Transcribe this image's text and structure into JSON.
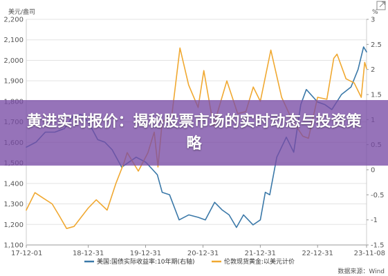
{
  "headline": "黄进实时报价：揭秘股票市场的实时动态与投资策略",
  "source_label": "数据来源：Wind",
  "chart_data": {
    "type": "line",
    "units": {
      "left": "美元/盎司",
      "right": "%"
    },
    "x_ticks": [
      "17-12-01",
      "18-12-31",
      "19-12-31",
      "20-12-31",
      "21-12-31",
      "22-12-31",
      "23-11-08"
    ],
    "y_left": {
      "min": 1100,
      "max": 2200,
      "ticks": [
        "1,100",
        "1,200",
        "1,300",
        "1,400",
        "1,500",
        "1,600",
        "1,700",
        "1,800",
        "1,900",
        "2,000",
        "2,100",
        "2,200"
      ]
    },
    "y_right": {
      "min": -1.5,
      "max": 3,
      "ticks": [
        "-1.5",
        "-1",
        "-0.5",
        "0",
        "0.5",
        "1",
        "1.5",
        "2",
        "2.5",
        "3"
      ]
    },
    "legend": [
      {
        "name": "美国:国债实际收益率:10年期(右轴)",
        "color": "#3a78a8"
      },
      {
        "name": "伦敦现货黄金:以美元计价",
        "color": "#f0a830"
      }
    ],
    "series": [
      {
        "name": "美国:国债实际收益率:10年期(右轴)",
        "axis": "right",
        "color": "#3a78a8",
        "x": [
          "2017-12-01",
          "2018-02-01",
          "2018-04-01",
          "2018-06-01",
          "2018-08-01",
          "2018-10-01",
          "2018-11-15",
          "2019-01-01",
          "2019-03-01",
          "2019-04-15",
          "2019-06-01",
          "2019-08-01",
          "2019-09-15",
          "2019-11-01",
          "2020-01-01",
          "2020-02-15",
          "2020-03-15",
          "2020-04-15",
          "2020-06-01",
          "2020-08-01",
          "2020-10-01",
          "2020-12-01",
          "2021-01-15",
          "2021-03-15",
          "2021-05-01",
          "2021-06-15",
          "2021-08-01",
          "2021-09-15",
          "2021-11-15",
          "2021-12-31",
          "2022-02-01",
          "2022-03-01",
          "2022-04-15",
          "2022-06-15",
          "2022-08-01",
          "2022-09-15",
          "2022-10-20",
          "2022-12-31",
          "2023-02-15",
          "2023-04-01",
          "2023-06-01",
          "2023-08-01",
          "2023-09-15",
          "2023-10-20",
          "2023-11-08"
        ],
        "y": [
          0.45,
          0.55,
          0.75,
          0.75,
          0.82,
          1.1,
          1.1,
          0.95,
          0.6,
          0.55,
          0.4,
          0.05,
          0.15,
          0.25,
          0.15,
          0.0,
          -0.1,
          -0.45,
          -0.5,
          -1.0,
          -0.9,
          -0.95,
          -1.0,
          -0.65,
          -0.8,
          -0.9,
          -1.15,
          -0.9,
          -1.1,
          -1.0,
          -0.45,
          -0.5,
          0.25,
          0.65,
          0.35,
          1.3,
          1.6,
          1.35,
          1.3,
          1.2,
          1.5,
          1.65,
          2.0,
          2.45,
          2.35
        ]
      },
      {
        "name": "伦敦现货黄金:以美元计价",
        "axis": "left",
        "color": "#f0a830",
        "x": [
          "2017-12-01",
          "2018-01-25",
          "2018-03-15",
          "2018-05-15",
          "2018-07-01",
          "2018-08-15",
          "2018-10-01",
          "2018-12-31",
          "2019-02-20",
          "2019-04-30",
          "2019-06-25",
          "2019-08-15",
          "2019-09-05",
          "2019-11-15",
          "2020-01-15",
          "2020-02-24",
          "2020-03-19",
          "2020-04-15",
          "2020-06-15",
          "2020-08-06",
          "2020-09-30",
          "2020-11-30",
          "2021-01-05",
          "2021-03-08",
          "2021-06-01",
          "2021-08-09",
          "2021-09-30",
          "2021-11-16",
          "2021-12-31",
          "2022-03-08",
          "2022-05-16",
          "2022-07-21",
          "2022-09-28",
          "2022-11-03",
          "2022-12-31",
          "2023-02-28",
          "2023-04-13",
          "2023-05-04",
          "2023-06-30",
          "2023-08-21",
          "2023-10-05",
          "2023-10-27",
          "2023-11-08"
        ],
        "y": [
          1270,
          1355,
          1330,
          1300,
          1240,
          1180,
          1190,
          1280,
          1320,
          1270,
          1400,
          1500,
          1550,
          1460,
          1550,
          1650,
          1480,
          1700,
          1730,
          2060,
          1880,
          1770,
          1950,
          1680,
          1900,
          1740,
          1750,
          1870,
          1800,
          2050,
          1820,
          1710,
          1630,
          1620,
          1820,
          1810,
          2010,
          2030,
          1910,
          1890,
          1820,
          1990,
          1960
        ]
      }
    ]
  }
}
